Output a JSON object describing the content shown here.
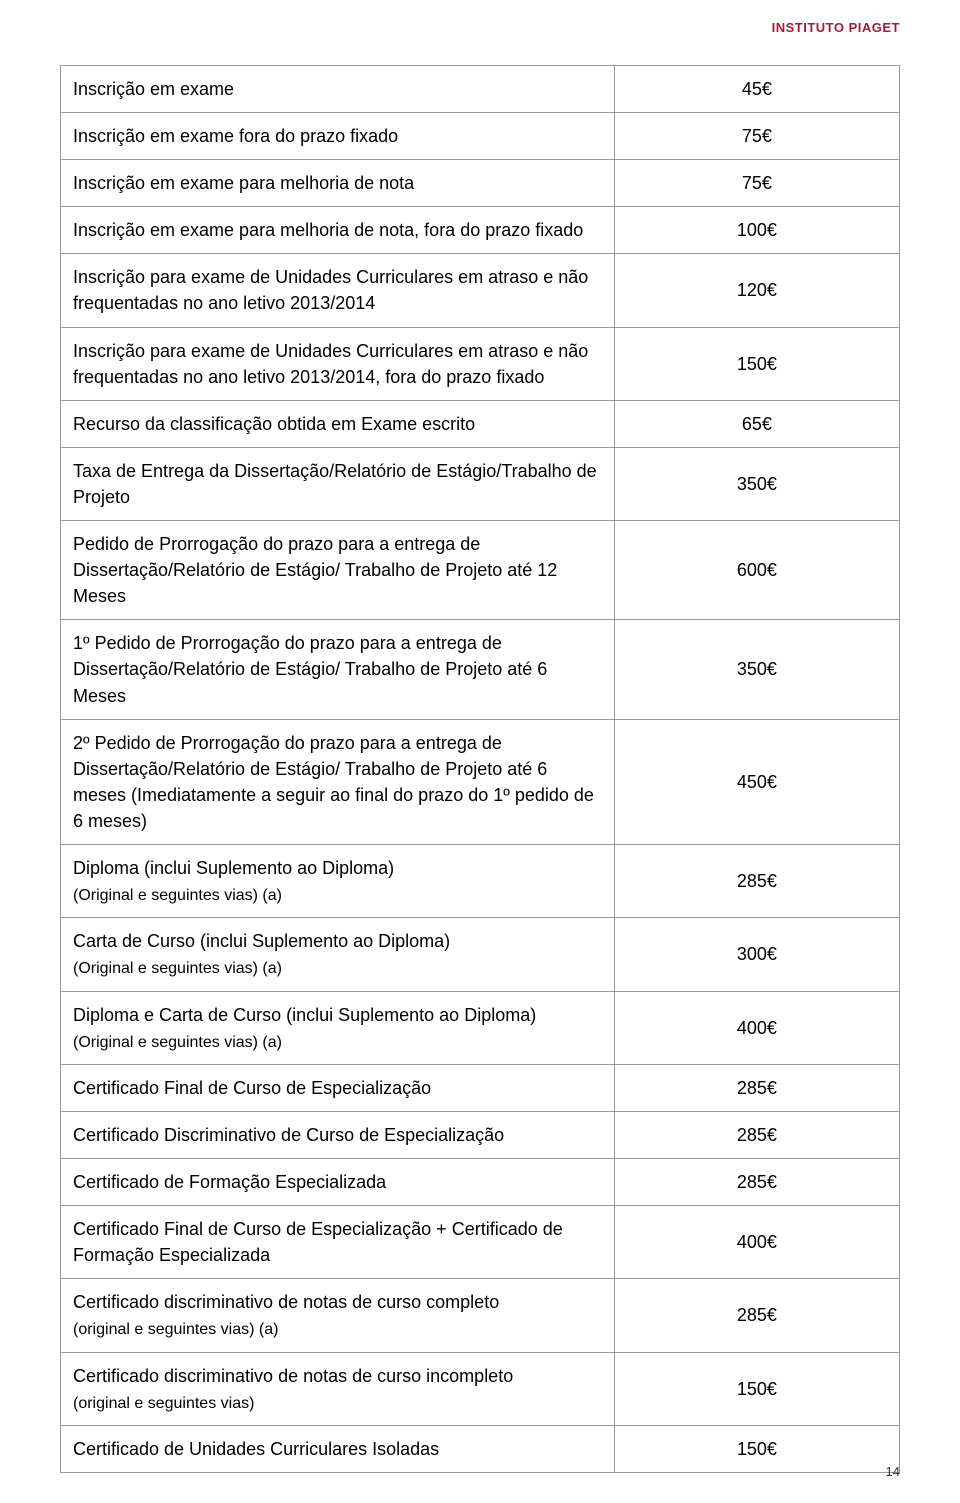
{
  "header": {
    "institution": "INSTITUTO PIAGET"
  },
  "footer": {
    "page_number": "14"
  },
  "table": {
    "rows": [
      {
        "desc": "Inscrição em exame",
        "price": "45€"
      },
      {
        "desc": "Inscrição em exame fora do prazo fixado",
        "price": "75€"
      },
      {
        "desc": "Inscrição em exame para melhoria de nota",
        "price": "75€"
      },
      {
        "desc": "Inscrição em exame para melhoria de nota, fora do prazo fixado",
        "price": "100€"
      },
      {
        "desc": "Inscrição para exame de Unidades Curriculares em atraso e não frequentadas no ano letivo 2013/2014",
        "price": "120€"
      },
      {
        "desc": "Inscrição para exame de Unidades Curriculares em atraso e não frequentadas no ano letivo 2013/2014, fora do prazo fixado",
        "price": "150€"
      },
      {
        "desc": "Recurso da classificação obtida em Exame escrito",
        "price": "65€"
      },
      {
        "desc": "Taxa de Entrega da Dissertação/Relatório de Estágio/Trabalho de Projeto",
        "price": "350€"
      },
      {
        "desc": "Pedido de Prorrogação do prazo para a entrega de Dissertação/Relatório de Estágio/ Trabalho de Projeto até 12 Meses",
        "price": "600€"
      },
      {
        "desc": "1º Pedido de Prorrogação do prazo para a entrega de Dissertação/Relatório de Estágio/ Trabalho de Projeto até 6 Meses",
        "price": "350€"
      },
      {
        "desc": "2º Pedido de Prorrogação do prazo para a entrega de Dissertação/Relatório de Estágio/ Trabalho de Projeto até 6 meses (Imediatamente a seguir ao final do prazo do 1º pedido de 6 meses)",
        "price": "450€"
      },
      {
        "desc": "Diploma (inclui Suplemento ao Diploma)",
        "sub": "(Original e seguintes vias) (a)",
        "price": "285€"
      },
      {
        "desc": "Carta de Curso (inclui Suplemento ao Diploma)",
        "sub": "(Original e seguintes vias) (a)",
        "price": "300€"
      },
      {
        "desc": "Diploma e Carta de Curso (inclui Suplemento ao Diploma)",
        "sub": "(Original e seguintes vias) (a)",
        "price": "400€"
      },
      {
        "desc": "Certificado Final de Curso de Especialização",
        "price": "285€"
      },
      {
        "desc": "Certificado Discriminativo de Curso de Especialização",
        "price": "285€"
      },
      {
        "desc": "Certificado de Formação Especializada",
        "price": "285€"
      },
      {
        "desc": "Certificado Final de Curso de Especialização + Certificado de Formação Especializada",
        "price": "400€"
      },
      {
        "desc": "Certificado discriminativo de notas de curso completo",
        "sub": "(original e seguintes vias) (a)",
        "price": "285€"
      },
      {
        "desc": "Certificado discriminativo de notas de curso incompleto",
        "sub": "(original e seguintes vias)",
        "price": "150€"
      },
      {
        "desc": "Certificado de Unidades Curriculares Isoladas",
        "price": "150€"
      }
    ]
  }
}
